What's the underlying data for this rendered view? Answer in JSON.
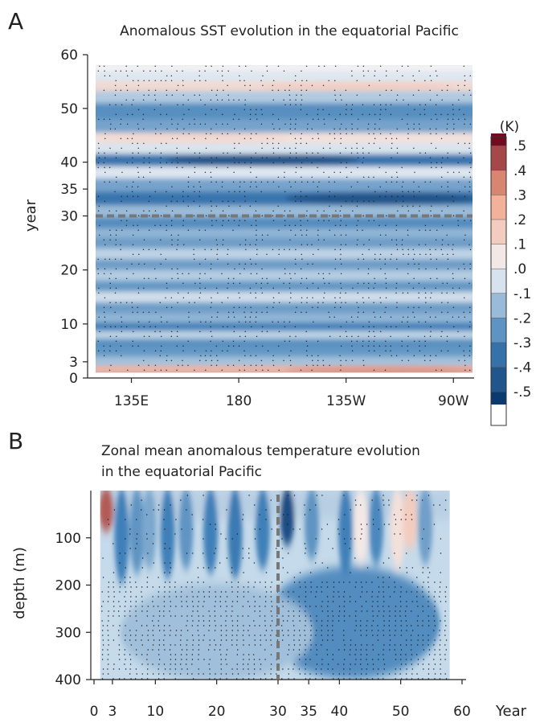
{
  "colors": {
    "neg_strong": "#0b3a6f",
    "neg_mid": "#3f7fb8",
    "neutral": "#f4f6f8",
    "pos_mid": "#f0a286",
    "pos_strong": "#720b1f",
    "dashed_line": "#777777",
    "stipple": "#1a1a1a"
  },
  "chart_data": [
    {
      "panel": "A",
      "type": "heatmap",
      "title": "Anomalous SST evolution in the equatorial Pacific",
      "xlabel": "",
      "ylabel": "year",
      "x_ticks": [
        "135E",
        "180",
        "135W",
        "90W"
      ],
      "x_tick_lon": [
        135,
        180,
        225,
        270
      ],
      "x_range_lon": [
        120,
        278
      ],
      "y_ticks": [
        0,
        3,
        10,
        20,
        30,
        35,
        40,
        50,
        60
      ],
      "y_range": [
        0,
        60
      ],
      "y_scale": "mixed: 0-30 stretched, 30-60 compressed",
      "data_extent_years": [
        1,
        58
      ],
      "marked_year": 30,
      "colorbar_units": "(K)",
      "colorbar_ticks": [
        ".5",
        ".4",
        ".3",
        ".2",
        ".1",
        ".0",
        "-.1",
        "-.2",
        "-.3",
        "-.4",
        "-.5"
      ],
      "colorbar_range": [
        -0.55,
        0.55
      ],
      "stippling": "significance dots over much of the domain",
      "bands": [
        {
          "year": 1.5,
          "value": 0.32,
          "lon_peak": 240
        },
        {
          "year": 3,
          "value": -0.18
        },
        {
          "year": 5,
          "value": -0.32
        },
        {
          "year": 6.5,
          "value": -0.35
        },
        {
          "year": 8,
          "value": -0.12
        },
        {
          "year": 9.5,
          "value": -0.4
        },
        {
          "year": 11,
          "value": -0.22
        },
        {
          "year": 13,
          "value": -0.3
        },
        {
          "year": 15,
          "value": -0.08
        },
        {
          "year": 17,
          "value": -0.32
        },
        {
          "year": 19,
          "value": -0.14
        },
        {
          "year": 21,
          "value": -0.3
        },
        {
          "year": 23,
          "value": -0.12
        },
        {
          "year": 25,
          "value": -0.3
        },
        {
          "year": 27,
          "value": -0.22
        },
        {
          "year": 28.5,
          "value": -0.36
        },
        {
          "year": 31,
          "value": -0.2
        },
        {
          "year": 33,
          "value": -0.45,
          "lon_peak": 240
        },
        {
          "year": 36,
          "value": -0.28
        },
        {
          "year": 38,
          "value": -0.05
        },
        {
          "year": 40.5,
          "value": -0.45,
          "lon_peak": 190
        },
        {
          "year": 42.5,
          "value": -0.06
        },
        {
          "year": 44.5,
          "value": 0.1,
          "lon_peak": 160
        },
        {
          "year": 46.5,
          "value": -0.28
        },
        {
          "year": 49.5,
          "value": -0.35
        },
        {
          "year": 52.5,
          "value": -0.15
        },
        {
          "year": 54,
          "value": 0.14,
          "lon_peak": 230
        },
        {
          "year": 56,
          "value": -0.05
        },
        {
          "year": 58,
          "value": 0.02
        }
      ]
    },
    {
      "panel": "B",
      "type": "heatmap",
      "title_line1": "Zonal mean anomalous temperature evolution",
      "title_line2": "in the equatorial Pacific",
      "xlabel": "Year",
      "ylabel": "depth (m)",
      "x_ticks": [
        0,
        3,
        10,
        20,
        30,
        35,
        40,
        50,
        60
      ],
      "x_range": [
        0,
        60
      ],
      "y_ticks": [
        100,
        200,
        300,
        400
      ],
      "y_range": [
        0,
        400
      ],
      "y_direction": "depth increases downward",
      "data_extent_years": [
        1,
        58
      ],
      "marked_year": 30,
      "stippling": "significance dots, densest below 200 m",
      "plumes": [
        {
          "year": 2,
          "value": 0.42,
          "depth_max": 80
        },
        {
          "year": 4.5,
          "value": -0.3,
          "depth_max": 190
        },
        {
          "year": 7,
          "value": -0.25,
          "depth_max": 170
        },
        {
          "year": 9,
          "value": -0.2,
          "depth_max": 160
        },
        {
          "year": 12,
          "value": -0.3,
          "depth_max": 180
        },
        {
          "year": 15,
          "value": -0.25,
          "depth_max": 160
        },
        {
          "year": 19,
          "value": -0.3,
          "depth_max": 170
        },
        {
          "year": 23,
          "value": -0.32,
          "depth_max": 180
        },
        {
          "year": 27.5,
          "value": -0.3,
          "depth_max": 160
        },
        {
          "year": 31.5,
          "value": -0.48,
          "depth_max": 110
        },
        {
          "year": 35.5,
          "value": -0.25,
          "depth_max": 140
        },
        {
          "year": 41,
          "value": -0.3,
          "depth_max": 170
        },
        {
          "year": 43.5,
          "value": 0.05,
          "depth_max": 150
        },
        {
          "year": 46,
          "value": -0.28,
          "depth_max": 150
        },
        {
          "year": 49.5,
          "value": 0.08,
          "depth_max": 160
        },
        {
          "year": 51.5,
          "value": 0.15,
          "depth_max": 120
        },
        {
          "year": 54,
          "value": -0.22,
          "depth_max": 150
        }
      ]
    }
  ]
}
